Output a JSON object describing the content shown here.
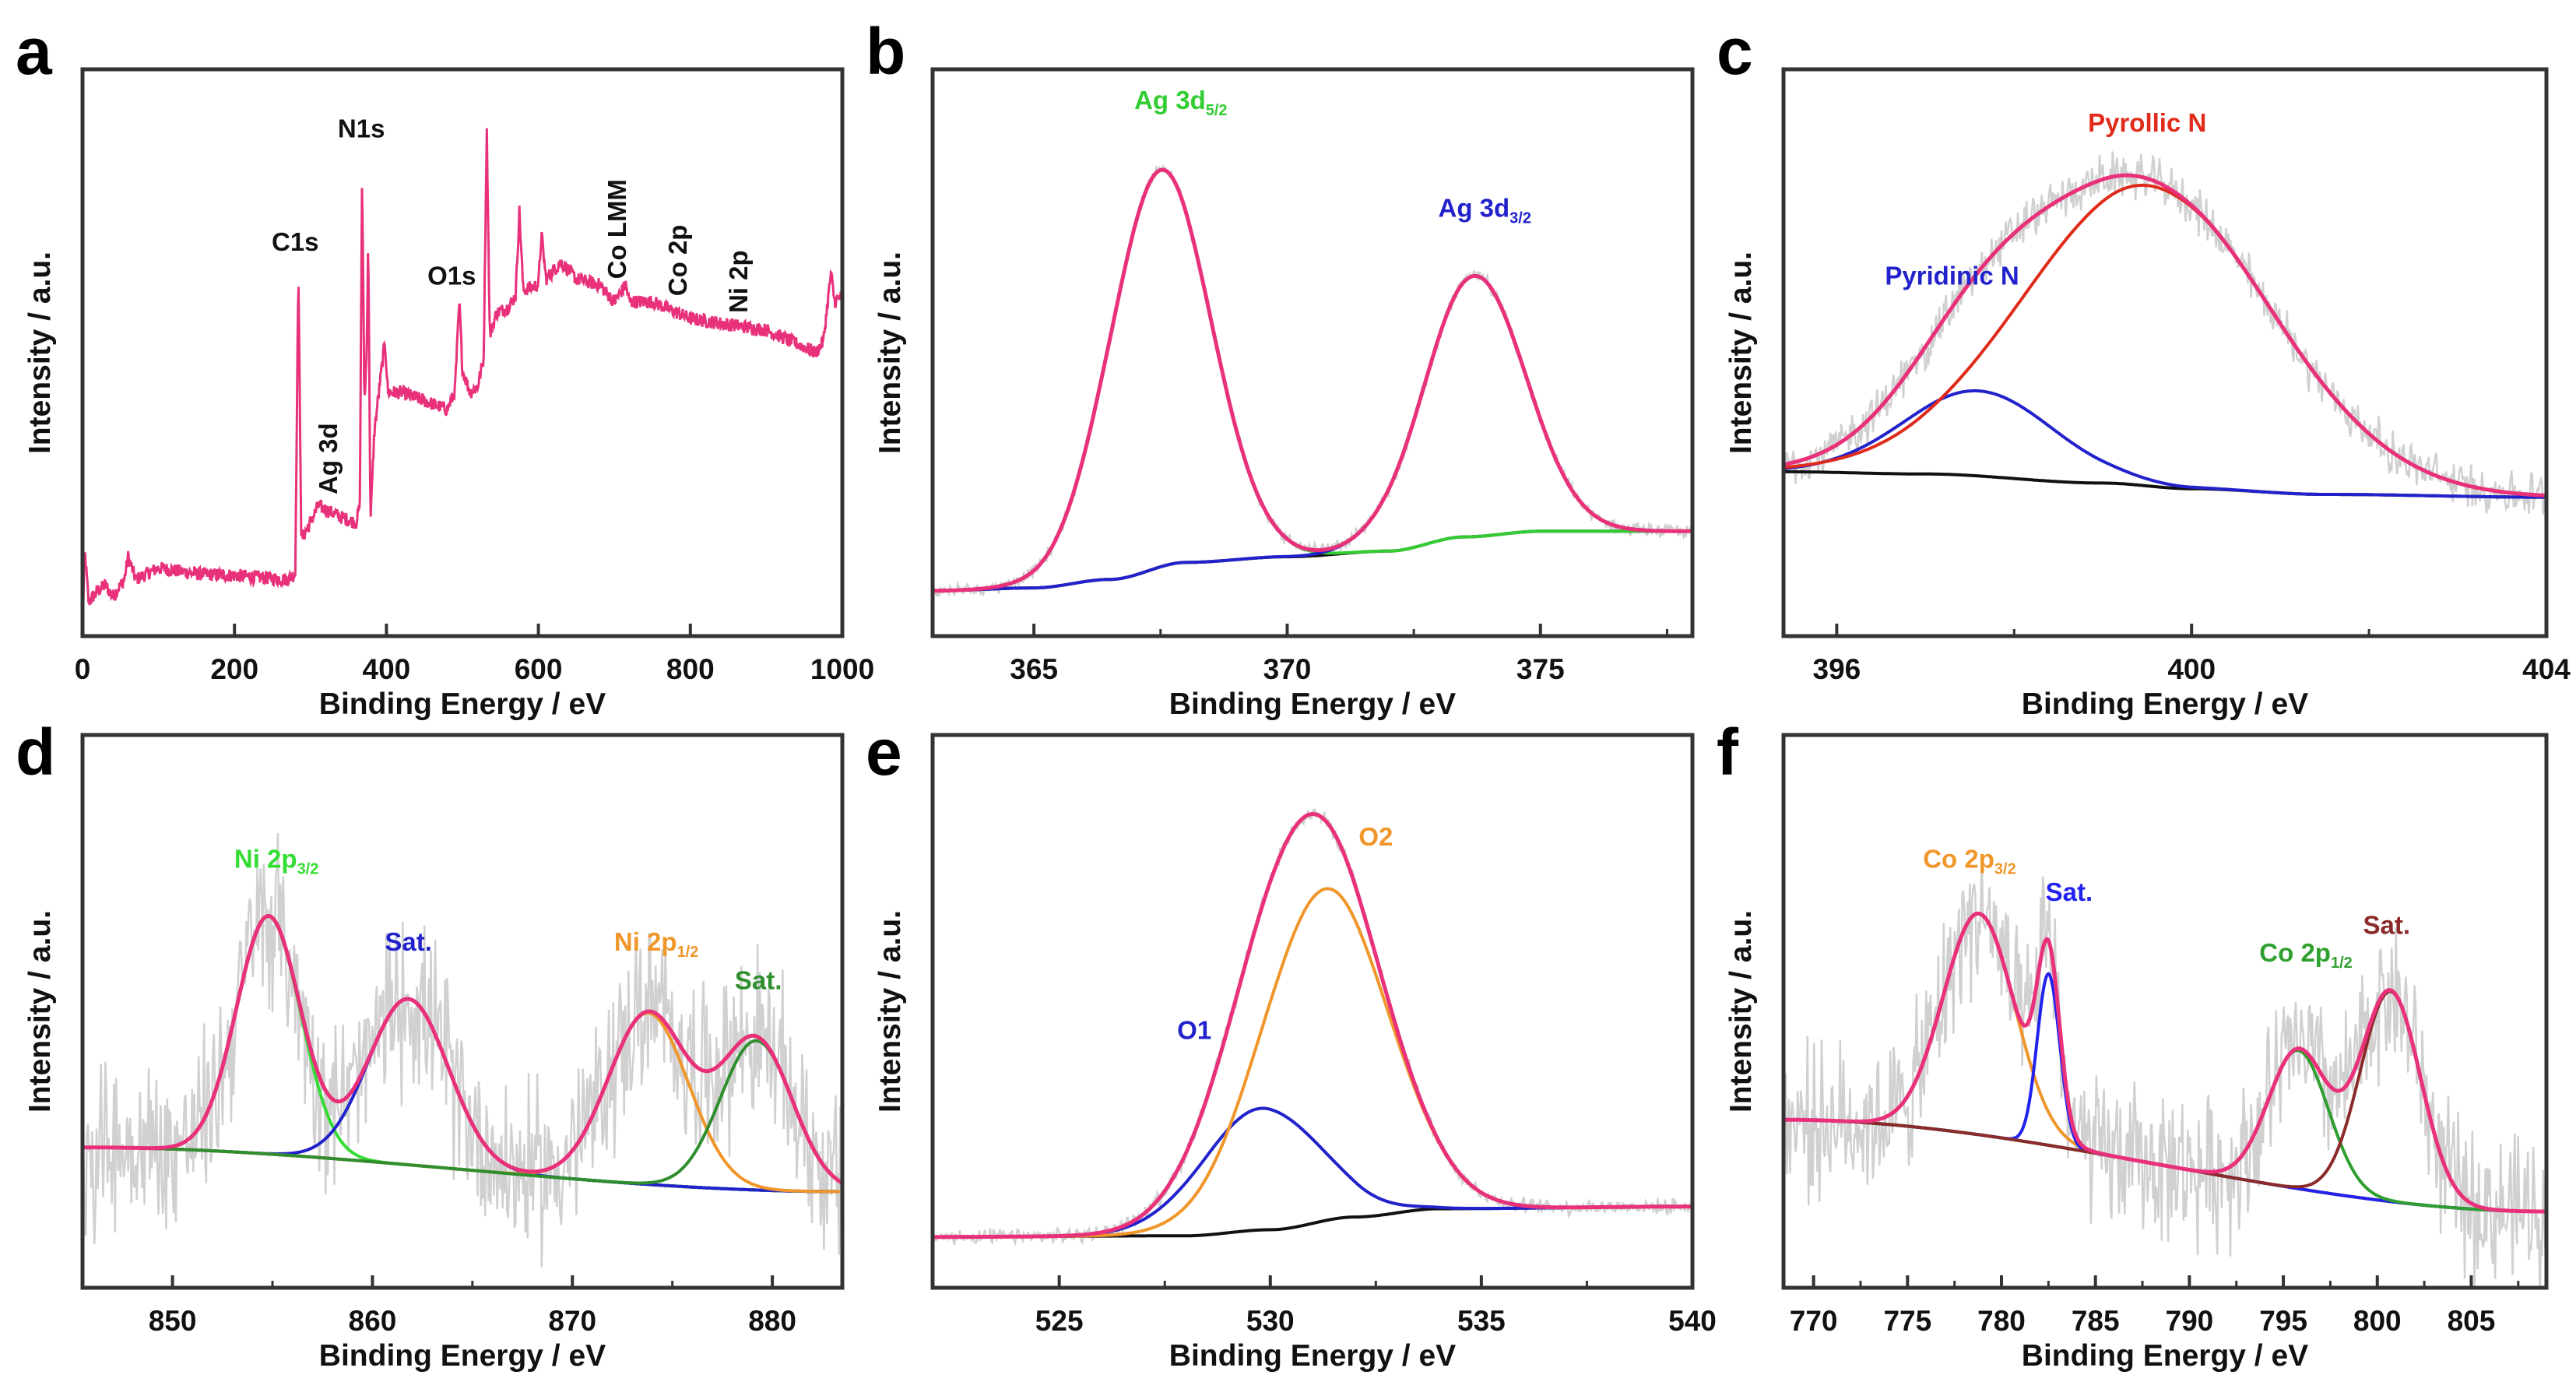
{
  "chart_data": [
    {
      "id": "a",
      "panel_letter": "a",
      "type": "line",
      "xlabel": "Binding Energy / eV",
      "ylabel": "Intensity / a.u.",
      "xlim": [
        0,
        1000
      ],
      "ylim": [
        0,
        100
      ],
      "xticks": [
        0,
        200,
        400,
        600,
        800,
        1000
      ],
      "minor_ticks": [],
      "noise": 1.2,
      "show_raw": false,
      "survey": {
        "color": "#e8317a",
        "points": [
          [
            0,
            1.6
          ],
          [
            3,
            15
          ],
          [
            8,
            6
          ],
          [
            20,
            8
          ],
          [
            30,
            9
          ],
          [
            40,
            7
          ],
          [
            55,
            10
          ],
          [
            60,
            14
          ],
          [
            70,
            10
          ],
          [
            100,
            12
          ],
          [
            150,
            11
          ],
          [
            200,
            10.7
          ],
          [
            270,
            10
          ],
          [
            280,
            11
          ],
          [
            284,
            65
          ],
          [
            288,
            17
          ],
          [
            300,
            20
          ],
          [
            310,
            23
          ],
          [
            340,
            21
          ],
          [
            360,
            20
          ],
          [
            365,
            23
          ],
          [
            368,
            82
          ],
          [
            371,
            41
          ],
          [
            374,
            50
          ],
          [
            376,
            71
          ],
          [
            379,
            20
          ],
          [
            384,
            36
          ],
          [
            390,
            43
          ],
          [
            398,
            52
          ],
          [
            402,
            43
          ],
          [
            420,
            43
          ],
          [
            480,
            40
          ],
          [
            490,
            43
          ],
          [
            496,
            59
          ],
          [
            500,
            47
          ],
          [
            510,
            43
          ],
          [
            520,
            44
          ],
          [
            528,
            49
          ],
          [
            532,
            90
          ],
          [
            536,
            53
          ],
          [
            545,
            57
          ],
          [
            560,
            58
          ],
          [
            570,
            60
          ],
          [
            575,
            75
          ],
          [
            580,
            61
          ],
          [
            600,
            62
          ],
          [
            604,
            71
          ],
          [
            610,
            63
          ],
          [
            630,
            66
          ],
          [
            650,
            63
          ],
          [
            680,
            62
          ],
          [
            700,
            59
          ],
          [
            715,
            62
          ],
          [
            720,
            59
          ],
          [
            750,
            59
          ],
          [
            800,
            56
          ],
          [
            850,
            55
          ],
          [
            900,
            54
          ],
          [
            950,
            51
          ],
          [
            965,
            50
          ],
          [
            975,
            52
          ],
          [
            985,
            64
          ],
          [
            990,
            59
          ],
          [
            1000,
            60
          ]
        ]
      },
      "annotations": [
        {
          "text": "C1s",
          "x": 280,
          "y": 68,
          "color": "#111111",
          "rotate": false
        },
        {
          "text": "N1s",
          "x": 367,
          "y": 88,
          "color": "#111111",
          "rotate": false
        },
        {
          "text": "O1s",
          "x": 486,
          "y": 62,
          "color": "#111111",
          "rotate": false
        },
        {
          "text": "Ag 3d",
          "x": 335,
          "y": 25,
          "color": "#111111",
          "rotate": true
        },
        {
          "text": "Co LMM",
          "x": 715,
          "y": 63,
          "color": "#111111",
          "rotate": true
        },
        {
          "text": "Co 2p",
          "x": 795,
          "y": 60,
          "color": "#111111",
          "rotate": true
        },
        {
          "text": "Ni 2p",
          "x": 875,
          "y": 57,
          "color": "#111111",
          "rotate": true
        }
      ]
    },
    {
      "id": "b",
      "panel_letter": "b",
      "type": "line",
      "xlabel": "Binding Energy / eV",
      "ylabel": "Intensity / a.u.",
      "xlim": [
        363,
        378
      ],
      "ylim": [
        0,
        100
      ],
      "xticks": [
        365,
        370,
        375
      ],
      "minor_ticks": [
        367.5,
        372.5,
        377.5
      ],
      "noise": 1.0,
      "show_raw": true,
      "baseline": [
        [
          363,
          8
        ],
        [
          365,
          8.5
        ],
        [
          366.5,
          10
        ],
        [
          368,
          13
        ],
        [
          370,
          14
        ],
        [
          372,
          15
        ],
        [
          373.5,
          17.5
        ],
        [
          375,
          18.5
        ],
        [
          378,
          18.5
        ]
      ],
      "envelope_color": "#e8317a",
      "components": [
        {
          "name": "Ag 3d5/2",
          "center": 367.5,
          "height": 70,
          "sigma": 1.0,
          "color": "#33cc33"
        },
        {
          "name": "Ag 3d3/2",
          "center": 373.7,
          "height": 46,
          "sigma": 1.0,
          "color": "#2222cc"
        }
      ],
      "annotations": [
        {
          "text": "Ag 3d",
          "sub": "5/2",
          "x": 367.9,
          "y": 93,
          "color": "#33cc33"
        },
        {
          "text": "Ag 3d",
          "sub": "3/2",
          "x": 373.9,
          "y": 74,
          "color": "#2222cc"
        }
      ]
    },
    {
      "id": "c",
      "panel_letter": "c",
      "type": "line",
      "xlabel": "Binding Energy / eV",
      "ylabel": "Intensity / a.u.",
      "xlim": [
        395.4,
        404
      ],
      "ylim": [
        0,
        100
      ],
      "xticks": [
        396,
        400,
        404
      ],
      "minor_ticks": [
        398,
        402
      ],
      "noise": 3.5,
      "show_raw": true,
      "baseline": [
        [
          395.4,
          29
        ],
        [
          397,
          28.6
        ],
        [
          399,
          27
        ],
        [
          400,
          26
        ],
        [
          401.5,
          25
        ],
        [
          404,
          24.5
        ]
      ],
      "envelope_color": "#e8317a",
      "components": [
        {
          "name": "Pyridinic N",
          "center": 397.6,
          "height": 15,
          "sigma": 0.85,
          "color": "#2222cc"
        },
        {
          "name": "Pyrollic N",
          "center": 399.5,
          "height": 53,
          "sigma": 1.4,
          "color": "#e02a1a"
        }
      ],
      "annotations": [
        {
          "text": "Pyrollic N",
          "x": 399.5,
          "y": 89,
          "color": "#e02a1a"
        },
        {
          "text": "Pyridinic N",
          "x": 397.3,
          "y": 62,
          "color": "#2222cc"
        }
      ]
    },
    {
      "id": "d",
      "panel_letter": "d",
      "type": "line",
      "xlabel": "Binding Energy / eV",
      "ylabel": "Intensity / a.u.",
      "xlim": [
        845.5,
        883.5
      ],
      "ylim": [
        0,
        100
      ],
      "xticks": [
        850,
        860,
        870,
        880
      ],
      "minor_ticks": [
        855,
        865,
        875
      ],
      "noise": 14,
      "show_raw": true,
      "baseline": [
        [
          845.5,
          25.4
        ],
        [
          883.5,
          17.4
        ]
      ],
      "envelope_color": "#e8317a",
      "components": [
        {
          "name": "Ni 2p3/2",
          "center": 854.8,
          "height": 43,
          "sigma": 1.6,
          "color": "#33dd33"
        },
        {
          "name": "Sat.",
          "center": 861.8,
          "height": 30,
          "sigma": 2.0,
          "color": "#2222cc"
        },
        {
          "name": "Ni 2p1/2",
          "center": 873.8,
          "height": 31,
          "sigma": 2.0,
          "color": "#f0962a"
        },
        {
          "name": "Sat.",
          "center": 879.2,
          "height": 27,
          "sigma": 1.8,
          "color": "#2f8f2f"
        }
      ],
      "annotations": [
        {
          "text": "Ni 2p",
          "sub": "3/2",
          "x": 855.2,
          "y": 76,
          "color": "#33dd33"
        },
        {
          "text": "Sat.",
          "x": 861.8,
          "y": 61,
          "color": "#2222cc"
        },
        {
          "text": "Ni 2p",
          "sub": "1/2",
          "x": 874.2,
          "y": 61,
          "color": "#f0962a"
        },
        {
          "text": "Sat.",
          "x": 879.3,
          "y": 54,
          "color": "#2f8f2f"
        }
      ]
    },
    {
      "id": "e",
      "panel_letter": "e",
      "type": "line",
      "xlabel": "Binding Energy / eV",
      "ylabel": "Intensity / a.u.",
      "xlim": [
        522,
        540
      ],
      "ylim": [
        0,
        100
      ],
      "xticks": [
        525,
        530,
        535,
        540
      ],
      "minor_ticks": [
        527.5,
        532.5,
        537.5
      ],
      "noise": 1.2,
      "show_raw": true,
      "baseline": [
        [
          522,
          9.2
        ],
        [
          528,
          9.4
        ],
        [
          530,
          10.5
        ],
        [
          532,
          12.8
        ],
        [
          534,
          14.3
        ],
        [
          540,
          14.7
        ]
      ],
      "envelope_color": "#e8317a",
      "components": [
        {
          "name": "O1",
          "center": 529.8,
          "height": 22,
          "sigma": 1.4,
          "color": "#2222cc"
        },
        {
          "name": "O2",
          "center": 531.3,
          "height": 60,
          "sigma": 1.5,
          "color": "#f0962a"
        }
      ],
      "annotations": [
        {
          "text": "O1",
          "x": 528.2,
          "y": 45,
          "color": "#2222cc"
        },
        {
          "text": "O2",
          "x": 532.5,
          "y": 80,
          "color": "#f0962a"
        }
      ]
    },
    {
      "id": "f",
      "panel_letter": "f",
      "type": "line",
      "xlabel": "Binding Energy / eV",
      "ylabel": "Intensity / a.u.",
      "xlim": [
        768.4,
        809
      ],
      "ylim": [
        0,
        100
      ],
      "xticks": [
        770,
        775,
        780,
        785,
        790,
        795,
        800,
        805
      ],
      "minor_ticks": [
        772.5,
        777.5,
        782.5,
        787.5,
        792.5,
        797.5,
        802.5,
        807.5
      ],
      "noise": 12,
      "show_raw": true,
      "baseline": [
        [
          768.4,
          30.4
        ],
        [
          809,
          13.8
        ]
      ],
      "envelope_color": "#e8317a",
      "components": [
        {
          "name": "Co 2p3/2",
          "center": 778.8,
          "height": 40,
          "sigma": 1.9,
          "color": "#f0962a"
        },
        {
          "name": "Sat.",
          "center": 782.5,
          "height": 31,
          "sigma": 0.6,
          "color": "#2222ee"
        },
        {
          "name": "Co 2p1/2",
          "center": 795.8,
          "height": 25,
          "sigma": 1.6,
          "color": "#2f9f2f"
        },
        {
          "name": "Sat.",
          "center": 800.7,
          "height": 38,
          "sigma": 1.6,
          "color": "#8b2a2a"
        }
      ],
      "annotations": [
        {
          "text": "Co 2p",
          "sub": "3/2",
          "x": 778.3,
          "y": 76,
          "color": "#f0962a"
        },
        {
          "text": "Sat.",
          "x": 783.6,
          "y": 70,
          "color": "#2222ee"
        },
        {
          "text": "Co 2p",
          "sub": "1/2",
          "x": 796.2,
          "y": 59,
          "color": "#2f9f2f"
        },
        {
          "text": "Sat.",
          "x": 800.5,
          "y": 64,
          "color": "#8b2a2a"
        }
      ]
    }
  ]
}
